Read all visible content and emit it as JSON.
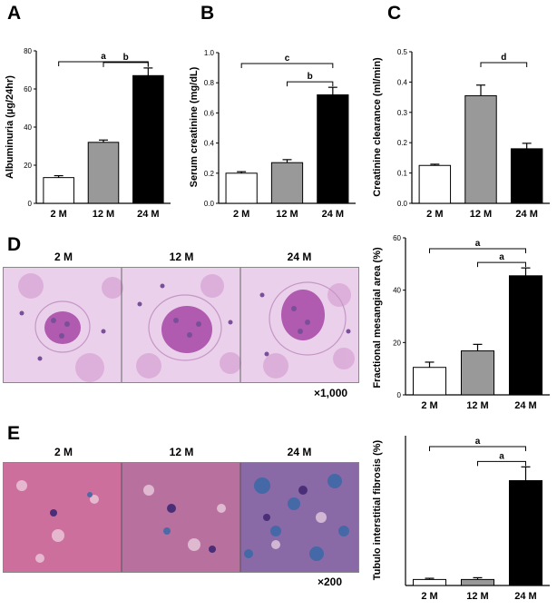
{
  "panel_labels": [
    "A",
    "B",
    "C",
    "D",
    "E"
  ],
  "micrographs": {
    "D": {
      "headers": [
        "2 M",
        "12 M",
        "24 M"
      ],
      "magnification": "×1,000"
    },
    "E": {
      "headers": [
        "2 M",
        "12 M",
        "24 M"
      ],
      "magnification": "×200"
    }
  },
  "colors": {
    "2M": "#ffffff",
    "12M": "#999999",
    "24M": "#000000",
    "pas_bg": "#e8c8e8",
    "trichrome_bg": "#c86fa0"
  },
  "chart_data": [
    {
      "id": "A",
      "type": "bar",
      "categories": [
        "2 M",
        "12 M",
        "24 M"
      ],
      "values": [
        13.5,
        32,
        67
      ],
      "errors": [
        1,
        1.2,
        4
      ],
      "ylabel": "Albuminuria (µg/24hr)",
      "ylim": [
        0,
        80
      ],
      "yticks": [
        "0",
        "20",
        "40",
        "60",
        "80"
      ],
      "brackets": [
        {
          "from": 0,
          "to": 2,
          "label": "a"
        },
        {
          "from": 1,
          "to": 2,
          "label": "b"
        }
      ]
    },
    {
      "id": "B",
      "type": "bar",
      "categories": [
        "2 M",
        "12 M",
        "24 M"
      ],
      "values": [
        0.2,
        0.27,
        0.72
      ],
      "errors": [
        0.01,
        0.02,
        0.05
      ],
      "ylabel": "Serum creatinine (mg/dL)",
      "ylim": [
        0,
        1.0
      ],
      "yticks": [
        "0.0",
        "0.2",
        "0.4",
        "0.6",
        "0.8",
        "1.0"
      ],
      "brackets": [
        {
          "from": 0,
          "to": 2,
          "label": "c"
        },
        {
          "from": 1,
          "to": 2,
          "label": "b"
        }
      ]
    },
    {
      "id": "C",
      "type": "bar",
      "categories": [
        "2 M",
        "12 M",
        "24 M"
      ],
      "values": [
        0.125,
        0.355,
        0.18
      ],
      "errors": [
        0.004,
        0.035,
        0.018
      ],
      "ylabel": "Creatinine clearance (ml/min)",
      "ylim": [
        0,
        0.5
      ],
      "yticks": [
        "0.0",
        "0.1",
        "0.2",
        "0.3",
        "0.4",
        "0.5"
      ],
      "brackets": [
        {
          "from": 1,
          "to": 2,
          "label": "d"
        }
      ]
    },
    {
      "id": "D",
      "type": "bar",
      "categories": [
        "2 M",
        "12 M",
        "24 M"
      ],
      "values": [
        10.5,
        16.8,
        45.5
      ],
      "errors": [
        2,
        2.5,
        3
      ],
      "ylabel": "Fractional mesangial area (%)",
      "ylim": [
        0,
        60
      ],
      "yticks": [
        "0",
        "20",
        "40",
        "60"
      ],
      "brackets": [
        {
          "from": 0,
          "to": 2,
          "label": "a"
        },
        {
          "from": 1,
          "to": 2,
          "label": "a"
        }
      ]
    },
    {
      "id": "E",
      "type": "bar",
      "categories": [
        "2 M",
        "12 M",
        "24 M"
      ],
      "values": [
        1,
        1,
        17.5
      ],
      "errors": [
        0.2,
        0.3,
        2.3
      ],
      "ylabel": "Tubulo interstitial fibrosis (%)",
      "ylim": [
        0,
        25
      ],
      "yticks": [],
      "brackets": [
        {
          "from": 0,
          "to": 2,
          "label": "a"
        },
        {
          "from": 1,
          "to": 2,
          "label": "a"
        }
      ]
    }
  ]
}
